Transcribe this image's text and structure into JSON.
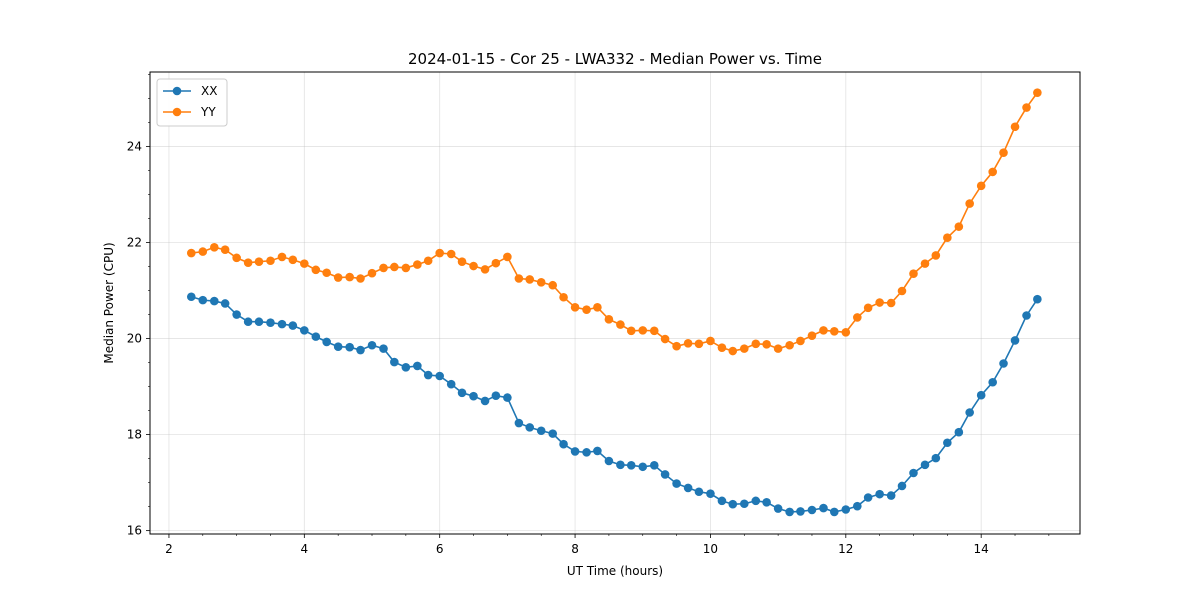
{
  "chart_data": {
    "type": "line",
    "title": "2024-01-15 - Cor 25 - LWA332 - Median Power vs. Time",
    "xlabel": "UT Time (hours)",
    "ylabel": "Median Power (CPU)",
    "xlim": [
      1.72,
      15.46
    ],
    "ylim": [
      15.93,
      25.55
    ],
    "xticks": [
      2,
      4,
      6,
      8,
      10,
      12,
      14
    ],
    "yticks": [
      16,
      18,
      20,
      22,
      24
    ],
    "grid": true,
    "legend_position": "top-left",
    "x": [
      2.33,
      2.5,
      2.67,
      2.83,
      3.0,
      3.17,
      3.33,
      3.5,
      3.67,
      3.83,
      4.0,
      4.17,
      4.33,
      4.5,
      4.67,
      4.83,
      5.0,
      5.17,
      5.33,
      5.5,
      5.67,
      5.83,
      6.0,
      6.17,
      6.33,
      6.5,
      6.67,
      6.83,
      7.0,
      7.17,
      7.33,
      7.5,
      7.67,
      7.83,
      8.0,
      8.17,
      8.33,
      8.5,
      8.67,
      8.83,
      9.0,
      9.17,
      9.33,
      9.5,
      9.67,
      9.83,
      10.0,
      10.17,
      10.33,
      10.5,
      10.67,
      10.83,
      11.0,
      11.17,
      11.33,
      11.5,
      11.67,
      11.83,
      12.0,
      12.17,
      12.33,
      12.5,
      12.67,
      12.83,
      13.0,
      13.17,
      13.33,
      13.5,
      13.67,
      13.83,
      14.0,
      14.17,
      14.33,
      14.5,
      14.67,
      14.83
    ],
    "series": [
      {
        "name": "XX",
        "color": "#1f77b4",
        "values": [
          20.87,
          20.8,
          20.78,
          20.73,
          20.5,
          20.35,
          20.35,
          20.33,
          20.3,
          20.27,
          20.17,
          20.04,
          19.93,
          19.83,
          19.82,
          19.76,
          19.86,
          19.79,
          19.51,
          19.4,
          19.43,
          19.24,
          19.22,
          19.05,
          18.87,
          18.8,
          18.7,
          18.81,
          18.77,
          18.24,
          18.15,
          18.08,
          18.02,
          17.8,
          17.65,
          17.63,
          17.66,
          17.45,
          17.37,
          17.36,
          17.33,
          17.36,
          17.17,
          16.98,
          16.89,
          16.81,
          16.77,
          16.62,
          16.55,
          16.56,
          16.62,
          16.59,
          16.46,
          16.39,
          16.4,
          16.43,
          16.47,
          16.39,
          16.44,
          16.51,
          16.69,
          16.76,
          16.73,
          16.93,
          17.2,
          17.37,
          17.51,
          17.83,
          18.05,
          18.46,
          18.82,
          19.09,
          19.48,
          19.96,
          20.48,
          20.82
        ]
      },
      {
        "name": "YY",
        "color": "#ff7f0e",
        "values": [
          21.78,
          21.81,
          21.9,
          21.85,
          21.68,
          21.58,
          21.6,
          21.62,
          21.7,
          21.64,
          21.56,
          21.43,
          21.37,
          21.27,
          21.28,
          21.25,
          21.36,
          21.47,
          21.49,
          21.47,
          21.54,
          21.62,
          21.78,
          21.76,
          21.6,
          21.51,
          21.44,
          21.57,
          21.7,
          21.25,
          21.23,
          21.17,
          21.11,
          20.86,
          20.65,
          20.6,
          20.65,
          20.4,
          20.29,
          20.16,
          20.17,
          20.16,
          19.99,
          19.84,
          19.9,
          19.89,
          19.95,
          19.81,
          19.74,
          19.79,
          19.89,
          19.88,
          19.79,
          19.86,
          19.95,
          20.06,
          20.17,
          20.15,
          20.13,
          20.44,
          20.64,
          20.75,
          20.74,
          20.99,
          21.35,
          21.56,
          21.73,
          22.1,
          22.33,
          22.81,
          23.18,
          23.47,
          23.87,
          24.41,
          24.81,
          25.12
        ]
      }
    ]
  }
}
